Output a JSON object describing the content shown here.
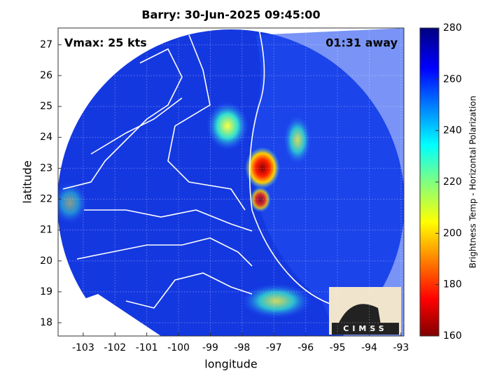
{
  "chart_data": {
    "type": "map",
    "title": "Barry: 30-Jun-2025 09:45:00",
    "xlabel": "longitude",
    "ylabel": "latitude",
    "xlim": [
      -103.79,
      -92.91
    ],
    "ylim": [
      17.57,
      27.54
    ],
    "xticks": [
      -103,
      -102,
      -101,
      -100,
      -99,
      -98,
      -97,
      -96,
      -95,
      -94,
      -93
    ],
    "yticks": [
      18,
      19,
      20,
      21,
      22,
      23,
      24,
      25,
      26,
      27
    ],
    "grid": true,
    "annotations": [
      "Vmax: 25 kts",
      "01:31 away"
    ],
    "logo": "CIMSS",
    "colorbar": {
      "label": "Brightness Temp - Horizontal Polarization",
      "lim": [
        160,
        280
      ],
      "ticks": [
        160,
        180,
        200,
        220,
        240,
        260,
        280
      ]
    }
  }
}
